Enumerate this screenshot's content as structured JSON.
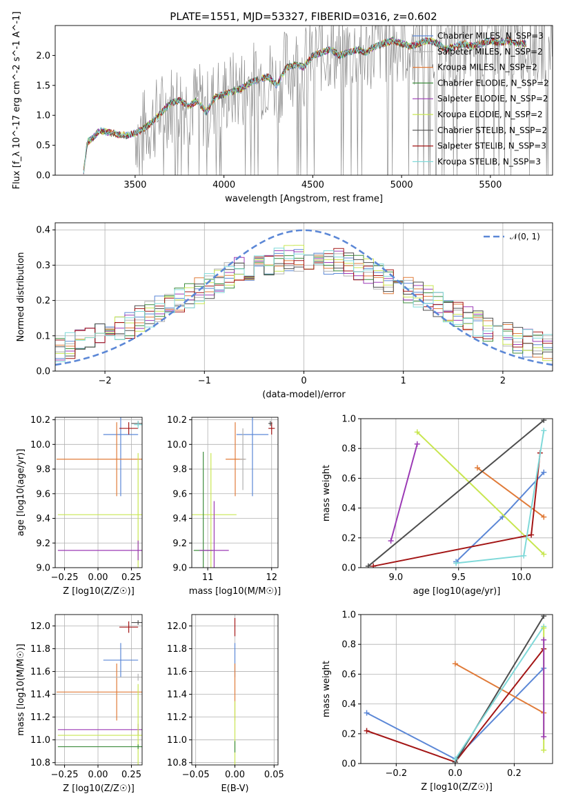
{
  "title": "PLATE=1551, MJD=53327, FIBERID=0316, z=0.602",
  "models": [
    {
      "name": "Chabrier MILES, N_SSP=3",
      "color": "#5b87d6"
    },
    {
      "name": "Salpeter MILES, N_SSP=2",
      "color": "#b0b0b0"
    },
    {
      "name": "Kroupa MILES, N_SSP=2",
      "color": "#e07b39"
    },
    {
      "name": "Chabrier ELODIE, N_SSP=2",
      "color": "#3c8c3c"
    },
    {
      "name": "Salpeter ELODIE, N_SSP=2",
      "color": "#9b39b5"
    },
    {
      "name": "Kroupa ELODIE, N_SSP=2",
      "color": "#c8e650"
    },
    {
      "name": "Chabrier STELIB, N_SSP=2",
      "color": "#4d4d4d"
    },
    {
      "name": "Salpeter STELIB, N_SSP=3",
      "color": "#a31515"
    },
    {
      "name": "Kroupa STELIB, N_SSP=3",
      "color": "#7fd9d9"
    }
  ],
  "chart_data": [
    {
      "id": "spectrum",
      "type": "line",
      "xlabel": "wavelength [Angstrom, rest frame]",
      "ylabel": "Flux [f_λ 10^-17 erg cm^-2 s^-1 A^-1]",
      "xlim": [
        3050,
        5850
      ],
      "ylim": [
        0,
        2.5
      ],
      "xticks": [
        3500,
        4000,
        4500,
        5000,
        5500
      ],
      "yticks": [
        0.0,
        0.5,
        1.0,
        1.5,
        2.0
      ],
      "legend_position": "right",
      "model_x": [
        3210,
        3230,
        3260,
        3300,
        3350,
        3400,
        3450,
        3500,
        3550,
        3600,
        3650,
        3700,
        3750,
        3800,
        3850,
        3900,
        3950,
        4000,
        4050,
        4100,
        4150,
        4200,
        4250,
        4300,
        4350,
        4400,
        4450,
        4500,
        4550,
        4600,
        4650,
        4700,
        4750,
        4800,
        4850,
        4900,
        4950,
        5000,
        5050,
        5100,
        5150,
        5200,
        5250,
        5300,
        5350,
        5400,
        5450,
        5500,
        5550,
        5600,
        5650,
        5700
      ],
      "model_y": [
        0.05,
        0.55,
        0.62,
        0.74,
        0.72,
        0.68,
        0.66,
        0.7,
        0.78,
        0.9,
        1.05,
        1.2,
        1.25,
        1.15,
        1.25,
        1.05,
        1.3,
        1.35,
        1.4,
        1.45,
        1.55,
        1.6,
        1.65,
        1.5,
        1.8,
        1.85,
        1.8,
        2.0,
        2.05,
        2.1,
        2.0,
        2.05,
        2.1,
        2.05,
        2.15,
        2.2,
        2.25,
        2.2,
        2.15,
        2.2,
        2.25,
        2.2,
        2.1,
        2.15,
        2.2,
        2.15,
        2.2,
        2.25,
        2.2,
        2.25,
        2.2,
        2.2
      ],
      "data_start": 3500
    },
    {
      "id": "residuals",
      "type": "line",
      "xlabel": "(data-model)/error",
      "ylabel": "Normed distribution",
      "xlim": [
        -2.5,
        2.5
      ],
      "ylim": [
        0,
        0.42
      ],
      "xticks": [
        -2,
        -1,
        0,
        1,
        2
      ],
      "yticks": [
        0.0,
        0.1,
        0.2,
        0.3,
        0.4
      ],
      "reference_label": "𝒩(0, 1)",
      "legend_position": "top-right"
    },
    {
      "id": "age-vs-Z",
      "type": "scatter",
      "xlabel": "Z [log10(Z/Z☉)]",
      "ylabel": "age  [log10(age/yr)]",
      "xlim": [
        -0.32,
        0.33
      ],
      "ylim": [
        9.0,
        10.22
      ],
      "xticks": [
        -0.25,
        0.0,
        0.25
      ],
      "yticks": [
        9.0,
        9.2,
        9.4,
        9.6,
        9.8,
        10.0,
        10.2
      ],
      "points": [
        {
          "model": 0,
          "x": 0.17,
          "y": 10.08,
          "xerr": 0.13,
          "yerr": 0.5
        },
        {
          "model": 2,
          "x": 0.14,
          "y": 9.88,
          "xerr": 0.45,
          "yerr": 0.3
        },
        {
          "model": 5,
          "x": 0.3,
          "y": 9.43,
          "xerr": 0.6,
          "yerr": 0.5
        },
        {
          "model": 4,
          "x": 0.3,
          "y": 9.14,
          "xerr": 0.6,
          "yerr": 0.08
        },
        {
          "model": 7,
          "x": 0.23,
          "y": 10.13,
          "xerr": 0.07,
          "yerr": 0.05
        },
        {
          "model": 6,
          "x": 0.3,
          "y": 10.17,
          "xerr": 0.05,
          "yerr": 0.02
        },
        {
          "model": 8,
          "x": 0.3,
          "y": 10.16,
          "xerr": 0.03,
          "yerr": 0.03
        }
      ]
    },
    {
      "id": "age-vs-mass",
      "type": "scatter",
      "xlabel": "mass [log10(M/M☉)]",
      "ylabel": "",
      "xlim": [
        10.75,
        12.1
      ],
      "ylim": [
        9.0,
        10.22
      ],
      "xticks": [
        11,
        12
      ],
      "yticks": [
        9.0,
        9.2,
        9.4,
        9.6,
        9.8,
        10.0,
        10.2
      ],
      "points": [
        {
          "model": 0,
          "x": 11.7,
          "y": 10.08,
          "xerr": 0.25,
          "yerr": 0.5
        },
        {
          "model": 2,
          "x": 11.43,
          "y": 9.88,
          "xerr": 0.15,
          "yerr": 0.3
        },
        {
          "model": 1,
          "x": 11.55,
          "y": 9.88,
          "xerr": 0.05,
          "yerr": 0.25
        },
        {
          "model": 5,
          "x": 11.05,
          "y": 9.43,
          "xerr": 0.4,
          "yerr": 0.5
        },
        {
          "model": 3,
          "x": 10.93,
          "y": 9.14,
          "xerr": 0.15,
          "yerr": 0.8
        },
        {
          "model": 4,
          "x": 11.1,
          "y": 9.14,
          "xerr": 0.23,
          "yerr": 0.4
        },
        {
          "model": 7,
          "x": 12.0,
          "y": 10.13,
          "xerr": 0.05,
          "yerr": 0.05
        },
        {
          "model": 6,
          "x": 11.98,
          "y": 10.17,
          "xerr": 0.03,
          "yerr": 0.02
        }
      ]
    },
    {
      "id": "weight-vs-age",
      "type": "line",
      "xlabel": "age  [log10(age/yr)]",
      "ylabel": "mass weight",
      "xlim": [
        8.72,
        10.25
      ],
      "ylim": [
        0,
        1
      ],
      "xticks": [
        9.0,
        9.5,
        10.0
      ],
      "yticks": [
        0.0,
        0.2,
        0.4,
        0.6,
        0.8,
        1.0
      ],
      "series": [
        {
          "model": 0,
          "x": [
            9.48,
            9.85,
            10.18
          ],
          "y": [
            0.04,
            0.34,
            0.64
          ]
        },
        {
          "model": 2,
          "x": [
            9.65,
            10.18
          ],
          "y": [
            0.67,
            0.34
          ]
        },
        {
          "model": 4,
          "x": [
            8.96,
            9.17
          ],
          "y": [
            0.18,
            0.83
          ]
        },
        {
          "model": 5,
          "x": [
            9.17,
            10.18
          ],
          "y": [
            0.91,
            0.09
          ]
        },
        {
          "model": 6,
          "x": [
            8.78,
            10.18
          ],
          "y": [
            0.01,
            0.99
          ]
        },
        {
          "model": 7,
          "x": [
            8.82,
            10.08,
            10.15
          ],
          "y": [
            0.01,
            0.22,
            0.77
          ]
        },
        {
          "model": 8,
          "x": [
            9.48,
            10.02,
            10.18
          ],
          "y": [
            0.03,
            0.08,
            0.92
          ]
        }
      ]
    },
    {
      "id": "mass-vs-Z",
      "type": "scatter",
      "xlabel": "Z [log10(Z/Z☉)]",
      "ylabel": "mass [log10(M/M☉)]",
      "xlim": [
        -0.32,
        0.33
      ],
      "ylim": [
        10.78,
        12.1
      ],
      "xticks": [
        -0.25,
        0.0,
        0.25
      ],
      "yticks": [
        10.8,
        11.0,
        11.2,
        11.4,
        11.6,
        11.8,
        12.0
      ],
      "points": [
        {
          "model": 0,
          "x": 0.17,
          "y": 11.7,
          "xerr": 0.13,
          "yerr": 0.15
        },
        {
          "model": 2,
          "x": 0.14,
          "y": 11.42,
          "xerr": 0.45,
          "yerr": 0.25
        },
        {
          "model": 1,
          "x": 0.3,
          "y": 11.55,
          "xerr": 0.6,
          "yerr": 0.03
        },
        {
          "model": 4,
          "x": 0.3,
          "y": 11.09,
          "xerr": 0.6,
          "yerr": 0.05
        },
        {
          "model": 5,
          "x": 0.3,
          "y": 11.04,
          "xerr": 0.6,
          "yerr": 0.45
        },
        {
          "model": 3,
          "x": 0.3,
          "y": 10.94,
          "xerr": 0.6,
          "yerr": 0.02
        },
        {
          "model": 7,
          "x": 0.23,
          "y": 11.99,
          "xerr": 0.07,
          "yerr": 0.05
        },
        {
          "model": 6,
          "x": 0.3,
          "y": 12.03,
          "xerr": 0.05,
          "yerr": 0.02
        }
      ]
    },
    {
      "id": "mass-vs-EBV",
      "type": "scatter",
      "xlabel": "E(B-V)",
      "ylabel": "",
      "xlim": [
        -0.055,
        0.055
      ],
      "ylim": [
        10.78,
        12.1
      ],
      "xticks": [
        -0.05,
        0.0,
        0.05
      ],
      "yticks": [
        10.8,
        11.0,
        11.2,
        11.4,
        11.6,
        11.8,
        12.0
      ],
      "points": [
        {
          "model": 7,
          "x": 0,
          "y": 11.99,
          "xerr": 0,
          "yerr": 0.08
        },
        {
          "model": 0,
          "x": 0,
          "y": 11.7,
          "xerr": 0,
          "yerr": 0.15
        },
        {
          "model": 2,
          "x": 0,
          "y": 11.42,
          "xerr": 0,
          "yerr": 0.25
        },
        {
          "model": 5,
          "x": 0,
          "y": 11.04,
          "xerr": 0,
          "yerr": 0.3
        },
        {
          "model": 3,
          "x": 0,
          "y": 10.94,
          "xerr": 0,
          "yerr": 0.05
        }
      ]
    },
    {
      "id": "weight-vs-Z",
      "type": "line",
      "xlabel": "Z [log10(Z/Z☉)]",
      "ylabel": "mass weight",
      "xlim": [
        -0.32,
        0.33
      ],
      "ylim": [
        0,
        1
      ],
      "xticks": [
        -0.2,
        0.0,
        0.2
      ],
      "yticks": [
        0.0,
        0.2,
        0.4,
        0.6,
        0.8,
        1.0
      ],
      "series": [
        {
          "model": 0,
          "x": [
            -0.3,
            0.0,
            0.3
          ],
          "y": [
            0.34,
            0.03,
            0.64
          ]
        },
        {
          "model": 2,
          "x": [
            0.0,
            0.3
          ],
          "y": [
            0.67,
            0.34
          ]
        },
        {
          "model": 7,
          "x": [
            -0.3,
            0.0,
            0.3
          ],
          "y": [
            0.22,
            0.01,
            0.77
          ]
        },
        {
          "model": 6,
          "x": [
            0.0,
            0.3
          ],
          "y": [
            0.01,
            0.99
          ]
        },
        {
          "model": 8,
          "x": [
            0.0,
            0.3
          ],
          "y": [
            0.03,
            0.92
          ]
        },
        {
          "model": 5,
          "x": [
            0.3,
            0.3
          ],
          "y": [
            0.91,
            0.09
          ]
        },
        {
          "model": 4,
          "x": [
            0.3,
            0.3
          ],
          "y": [
            0.83,
            0.18
          ]
        }
      ]
    }
  ]
}
